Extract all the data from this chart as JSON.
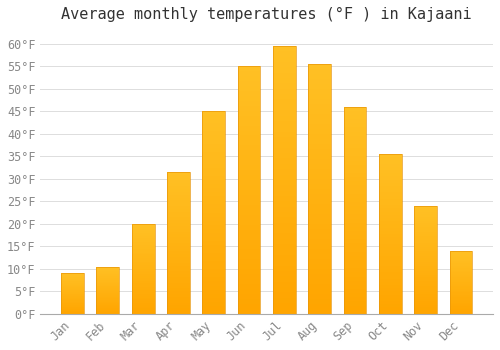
{
  "title": "Average monthly temperatures (°F ) in Kajaani",
  "months": [
    "Jan",
    "Feb",
    "Mar",
    "Apr",
    "May",
    "Jun",
    "Jul",
    "Aug",
    "Sep",
    "Oct",
    "Nov",
    "Dec"
  ],
  "values": [
    9,
    10.5,
    20,
    31.5,
    45,
    55,
    59.5,
    55.5,
    46,
    35.5,
    24,
    14
  ],
  "bar_color_top": "#FFC125",
  "bar_color_bottom": "#FFA500",
  "background_color": "#ffffff",
  "grid_color": "#dddddd",
  "ylim": [
    0,
    63
  ],
  "yticks": [
    0,
    5,
    10,
    15,
    20,
    25,
    30,
    35,
    40,
    45,
    50,
    55,
    60
  ],
  "title_fontsize": 11,
  "tick_fontsize": 8.5,
  "tick_color": "#888888",
  "font_family": "monospace",
  "bar_width": 0.65
}
